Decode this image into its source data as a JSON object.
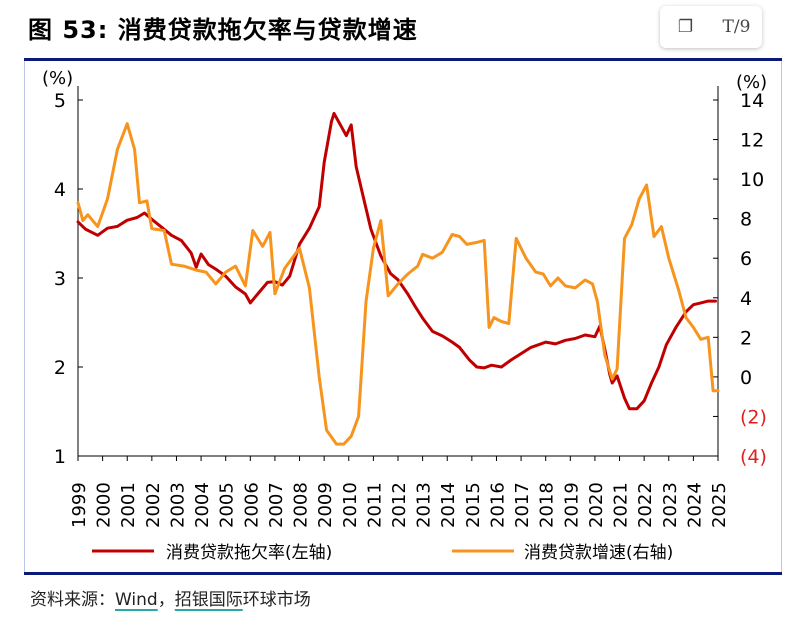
{
  "header": {
    "title": "图 53: 消费贷款拖欠率与贷款增速",
    "tools": [
      {
        "name": "copy-icon",
        "glyph": "❐"
      },
      {
        "name": "translate-icon",
        "glyph": "T/9"
      }
    ]
  },
  "source": {
    "prefix": "资料来源：",
    "wind": "Wind",
    "sep": "，",
    "cmb": "招银国际",
    "suffix": "环球市场"
  },
  "chart_data": {
    "type": "line",
    "left_axis": {
      "unit": "(%)",
      "min": 1,
      "max": 5,
      "ticks": [
        "1",
        "2",
        "3",
        "4",
        "5"
      ]
    },
    "right_axis": {
      "unit": "(%)",
      "min": -4,
      "max": 14,
      "ticks": [
        "(4)",
        "(2)",
        "0",
        "2",
        "4",
        "6",
        "8",
        "10",
        "12",
        "14"
      ],
      "negative_color": "#e02020"
    },
    "x_axis": {
      "min": 1999,
      "max": 2025,
      "ticks": [
        "1999",
        "2000",
        "2001",
        "2002",
        "2003",
        "2004",
        "2005",
        "2006",
        "2007",
        "2008",
        "2009",
        "2010",
        "2011",
        "2012",
        "2013",
        "2014",
        "2015",
        "2016",
        "2017",
        "2018",
        "2019",
        "2020",
        "2021",
        "2022",
        "2023",
        "2024",
        "2025"
      ]
    },
    "series": [
      {
        "name": "消费贷款拖欠率(左轴)",
        "axis": "left",
        "color": "#c00000",
        "points": [
          [
            1999.0,
            3.63
          ],
          [
            1999.3,
            3.55
          ],
          [
            1999.8,
            3.48
          ],
          [
            2000.2,
            3.56
          ],
          [
            2000.6,
            3.58
          ],
          [
            2001.0,
            3.65
          ],
          [
            2001.4,
            3.68
          ],
          [
            2001.7,
            3.73
          ],
          [
            2002.0,
            3.66
          ],
          [
            2002.4,
            3.57
          ],
          [
            2002.8,
            3.48
          ],
          [
            2003.2,
            3.42
          ],
          [
            2003.6,
            3.28
          ],
          [
            2003.8,
            3.12
          ],
          [
            2004.0,
            3.27
          ],
          [
            2004.3,
            3.15
          ],
          [
            2004.6,
            3.1
          ],
          [
            2005.0,
            3.02
          ],
          [
            2005.4,
            2.9
          ],
          [
            2005.8,
            2.82
          ],
          [
            2006.0,
            2.72
          ],
          [
            2006.3,
            2.82
          ],
          [
            2006.7,
            2.95
          ],
          [
            2007.0,
            2.96
          ],
          [
            2007.3,
            2.92
          ],
          [
            2007.6,
            3.02
          ],
          [
            2008.0,
            3.38
          ],
          [
            2008.4,
            3.56
          ],
          [
            2008.8,
            3.8
          ],
          [
            2009.0,
            4.3
          ],
          [
            2009.3,
            4.76
          ],
          [
            2009.4,
            4.85
          ],
          [
            2009.7,
            4.7
          ],
          [
            2009.9,
            4.6
          ],
          [
            2010.1,
            4.72
          ],
          [
            2010.3,
            4.25
          ],
          [
            2010.6,
            3.9
          ],
          [
            2010.9,
            3.55
          ],
          [
            2011.3,
            3.25
          ],
          [
            2011.7,
            3.05
          ],
          [
            2012.0,
            2.98
          ],
          [
            2012.4,
            2.82
          ],
          [
            2012.7,
            2.68
          ],
          [
            2013.0,
            2.55
          ],
          [
            2013.4,
            2.4
          ],
          [
            2013.8,
            2.35
          ],
          [
            2014.2,
            2.28
          ],
          [
            2014.5,
            2.22
          ],
          [
            2014.9,
            2.08
          ],
          [
            2015.2,
            2.0
          ],
          [
            2015.5,
            1.99
          ],
          [
            2015.8,
            2.02
          ],
          [
            2016.2,
            2.0
          ],
          [
            2016.6,
            2.08
          ],
          [
            2017.0,
            2.15
          ],
          [
            2017.4,
            2.22
          ],
          [
            2017.8,
            2.26
          ],
          [
            2018.0,
            2.28
          ],
          [
            2018.4,
            2.26
          ],
          [
            2018.8,
            2.3
          ],
          [
            2019.2,
            2.32
          ],
          [
            2019.6,
            2.36
          ],
          [
            2020.0,
            2.34
          ],
          [
            2020.2,
            2.46
          ],
          [
            2020.4,
            2.2
          ],
          [
            2020.6,
            1.92
          ],
          [
            2020.7,
            1.82
          ],
          [
            2020.9,
            1.9
          ],
          [
            2021.2,
            1.65
          ],
          [
            2021.4,
            1.53
          ],
          [
            2021.7,
            1.53
          ],
          [
            2022.0,
            1.62
          ],
          [
            2022.3,
            1.82
          ],
          [
            2022.6,
            2.0
          ],
          [
            2022.9,
            2.25
          ],
          [
            2023.3,
            2.45
          ],
          [
            2023.7,
            2.62
          ],
          [
            2024.0,
            2.7
          ],
          [
            2024.3,
            2.72
          ],
          [
            2024.6,
            2.74
          ],
          [
            2024.9,
            2.74
          ]
        ]
      },
      {
        "name": "消费贷款增速(右轴)",
        "axis": "right",
        "color": "#f7941d",
        "points": [
          [
            1999.0,
            8.8
          ],
          [
            1999.2,
            7.9
          ],
          [
            1999.4,
            8.2
          ],
          [
            1999.8,
            7.6
          ],
          [
            2000.2,
            9.0
          ],
          [
            2000.6,
            11.5
          ],
          [
            2001.0,
            12.8
          ],
          [
            2001.3,
            11.5
          ],
          [
            2001.5,
            8.8
          ],
          [
            2001.8,
            8.9
          ],
          [
            2002.0,
            7.5
          ],
          [
            2002.5,
            7.4
          ],
          [
            2002.8,
            5.7
          ],
          [
            2003.3,
            5.6
          ],
          [
            2003.8,
            5.4
          ],
          [
            2004.2,
            5.3
          ],
          [
            2004.6,
            4.7
          ],
          [
            2005.0,
            5.3
          ],
          [
            2005.4,
            5.6
          ],
          [
            2005.8,
            4.6
          ],
          [
            2006.1,
            7.4
          ],
          [
            2006.5,
            6.6
          ],
          [
            2006.8,
            7.3
          ],
          [
            2007.0,
            4.2
          ],
          [
            2007.4,
            5.5
          ],
          [
            2008.0,
            6.5
          ],
          [
            2008.4,
            4.5
          ],
          [
            2008.8,
            0.0
          ],
          [
            2009.1,
            -2.7
          ],
          [
            2009.5,
            -3.4
          ],
          [
            2009.8,
            -3.4
          ],
          [
            2010.1,
            -3.0
          ],
          [
            2010.4,
            -2.0
          ],
          [
            2010.7,
            3.8
          ],
          [
            2011.0,
            6.5
          ],
          [
            2011.3,
            7.9
          ],
          [
            2011.6,
            4.1
          ],
          [
            2012.0,
            4.7
          ],
          [
            2012.4,
            5.2
          ],
          [
            2012.8,
            5.6
          ],
          [
            2013.0,
            6.2
          ],
          [
            2013.4,
            6.0
          ],
          [
            2013.8,
            6.3
          ],
          [
            2014.2,
            7.2
          ],
          [
            2014.5,
            7.1
          ],
          [
            2014.8,
            6.7
          ],
          [
            2015.2,
            6.8
          ],
          [
            2015.5,
            6.9
          ],
          [
            2015.7,
            2.5
          ],
          [
            2015.9,
            3.0
          ],
          [
            2016.2,
            2.8
          ],
          [
            2016.5,
            2.7
          ],
          [
            2016.8,
            7.0
          ],
          [
            2017.2,
            6.0
          ],
          [
            2017.6,
            5.3
          ],
          [
            2017.9,
            5.2
          ],
          [
            2018.2,
            4.6
          ],
          [
            2018.5,
            5.0
          ],
          [
            2018.8,
            4.6
          ],
          [
            2019.2,
            4.5
          ],
          [
            2019.6,
            4.9
          ],
          [
            2019.9,
            4.7
          ],
          [
            2020.1,
            3.8
          ],
          [
            2020.4,
            1.1
          ],
          [
            2020.7,
            -0.1
          ],
          [
            2020.9,
            0.4
          ],
          [
            2021.2,
            7.0
          ],
          [
            2021.5,
            7.7
          ],
          [
            2021.8,
            9.0
          ],
          [
            2022.1,
            9.7
          ],
          [
            2022.4,
            7.1
          ],
          [
            2022.7,
            7.6
          ],
          [
            2023.0,
            6.0
          ],
          [
            2023.4,
            4.4
          ],
          [
            2023.7,
            3.0
          ],
          [
            2024.0,
            2.5
          ],
          [
            2024.3,
            1.9
          ],
          [
            2024.6,
            2.0
          ],
          [
            2024.8,
            -0.7
          ],
          [
            2025.0,
            -0.7
          ]
        ]
      }
    ],
    "grid": false,
    "legend": "bottom"
  }
}
